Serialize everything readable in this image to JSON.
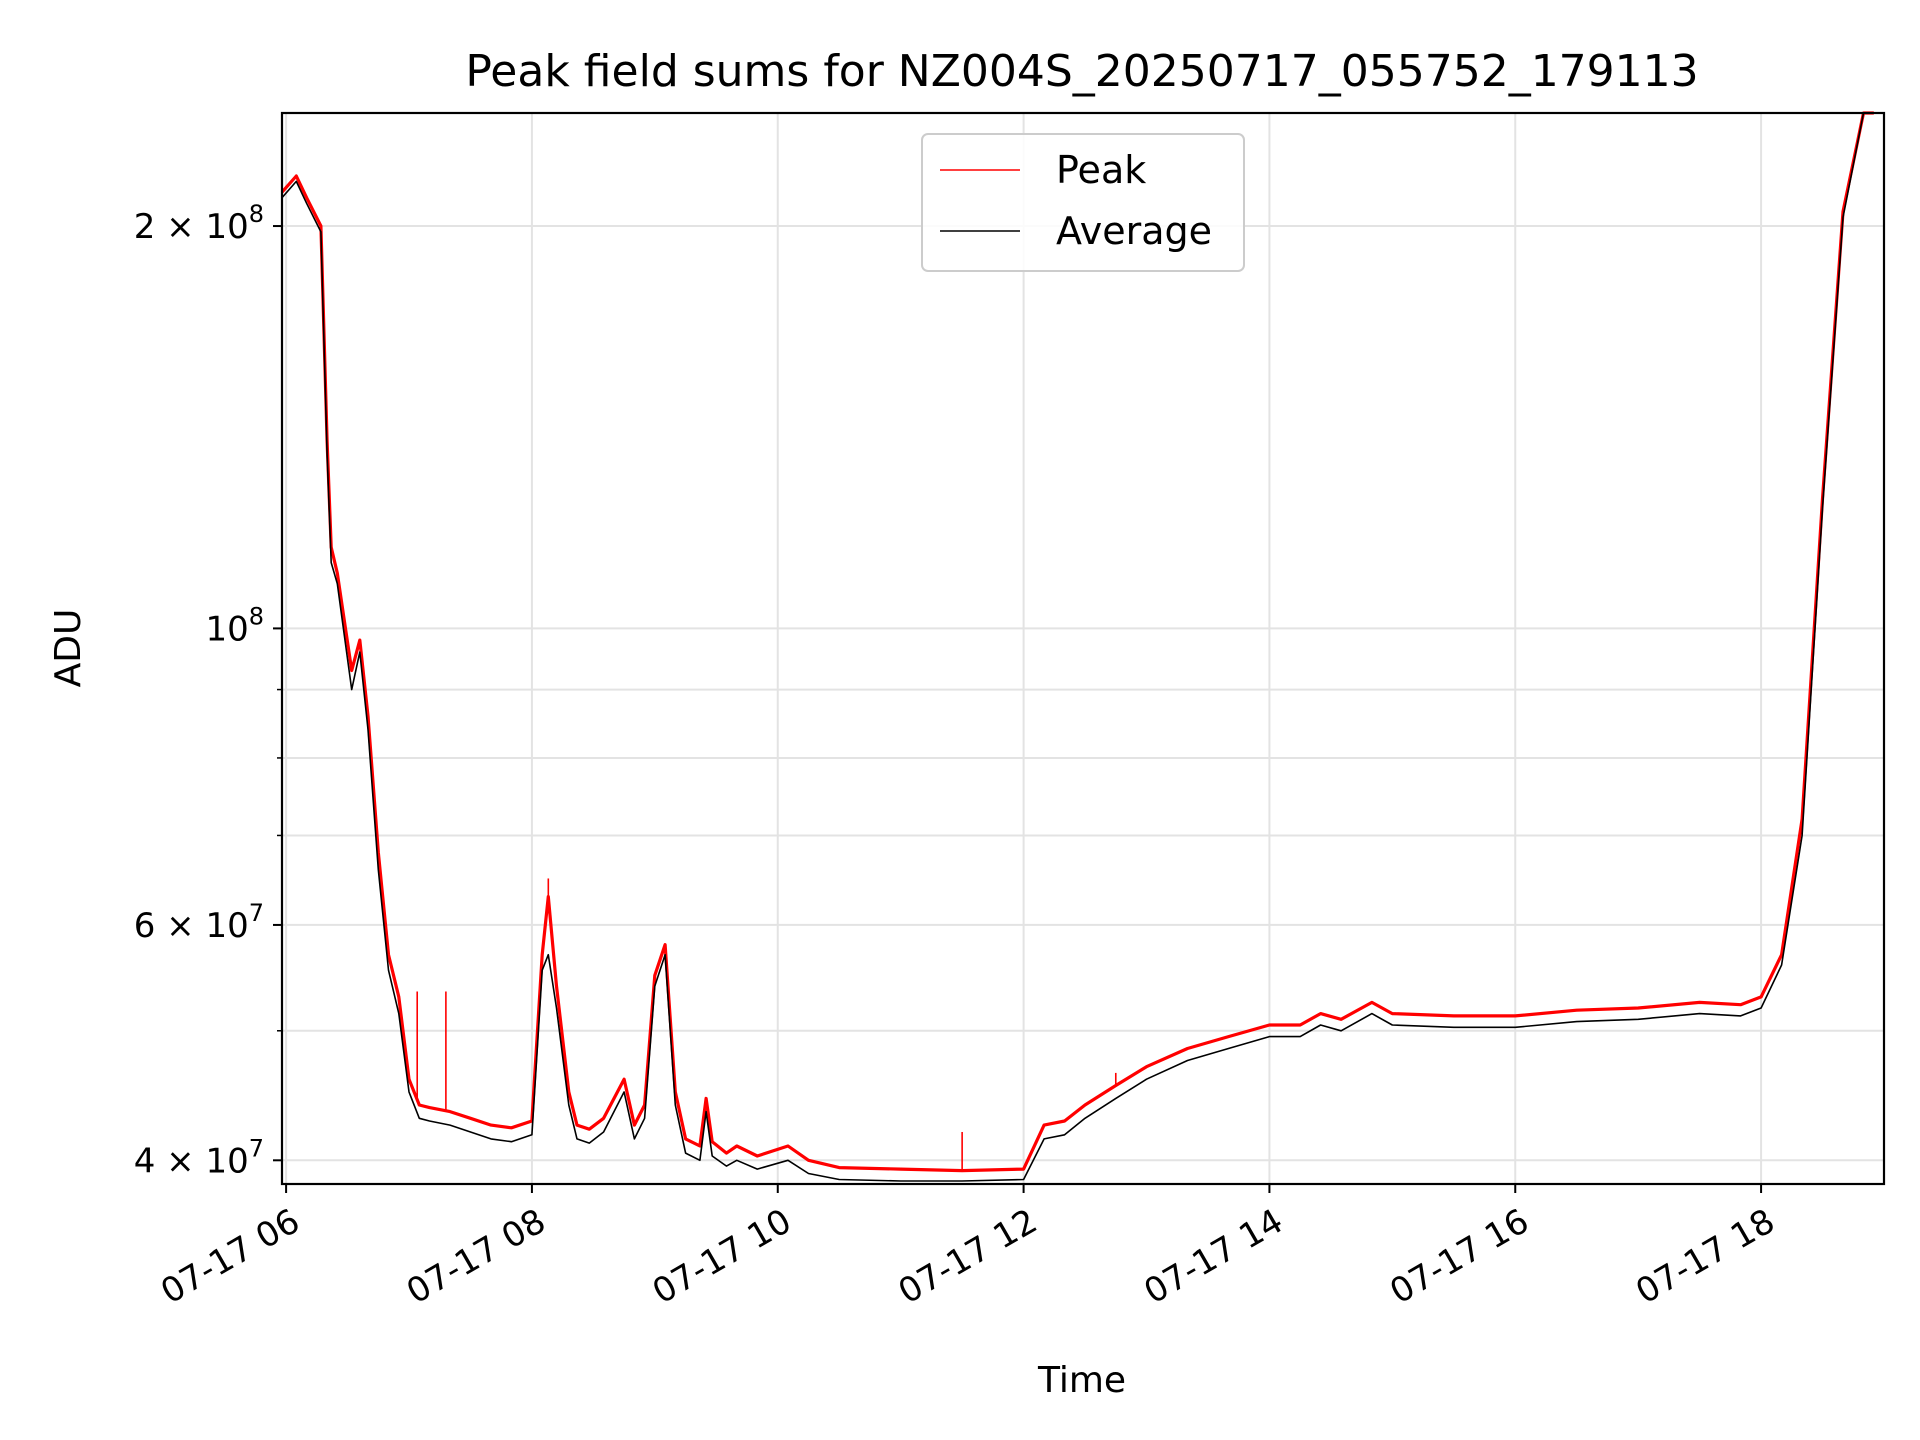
{
  "chart_data": {
    "type": "line",
    "title": "Peak field sums for NZ004S_20250717_055752_179113",
    "xlabel": "Time",
    "ylabel": "ADU",
    "x_scale": "time",
    "y_scale": "log",
    "xlim": [
      "2025-07-17 05:58",
      "2025-07-17 19:00"
    ],
    "ylim": [
      38400000,
      243000000
    ],
    "grid": true,
    "legend_position": "top-center",
    "x_ticks": [
      {
        "value": "2025-07-17 06:00",
        "label": "07-17 06"
      },
      {
        "value": "2025-07-17 08:00",
        "label": "07-17 08"
      },
      {
        "value": "2025-07-17 10:00",
        "label": "07-17 10"
      },
      {
        "value": "2025-07-17 12:00",
        "label": "07-17 12"
      },
      {
        "value": "2025-07-17 14:00",
        "label": "07-17 14"
      },
      {
        "value": "2025-07-17 16:00",
        "label": "07-17 16"
      },
      {
        "value": "2025-07-17 18:00",
        "label": "07-17 18"
      }
    ],
    "y_major_ticks": [
      {
        "value": 40000000,
        "mantissa": "4 × 10",
        "exp": "7"
      },
      {
        "value": 60000000,
        "mantissa": "6 × 10",
        "exp": "7"
      },
      {
        "value": 100000000,
        "mantissa": "10",
        "exp": "8"
      },
      {
        "value": 200000000,
        "mantissa": "2 × 10",
        "exp": "8"
      }
    ],
    "y_minor_ticks": [
      50000000,
      70000000,
      80000000,
      90000000
    ],
    "series": [
      {
        "name": "Peak",
        "color": "#ff0000",
        "x": [
          "2025-07-17 05:58",
          "2025-07-17 06:05",
          "2025-07-17 06:10",
          "2025-07-17 06:17",
          "2025-07-17 06:20",
          "2025-07-17 06:22",
          "2025-07-17 06:25",
          "2025-07-17 06:32",
          "2025-07-17 06:36",
          "2025-07-17 06:40",
          "2025-07-17 06:45",
          "2025-07-17 06:50",
          "2025-07-17 06:55",
          "2025-07-17 07:00",
          "2025-07-17 07:05",
          "2025-07-17 07:10",
          "2025-07-17 07:20",
          "2025-07-17 07:30",
          "2025-07-17 07:40",
          "2025-07-17 07:50",
          "2025-07-17 08:00",
          "2025-07-17 08:05",
          "2025-07-17 08:08",
          "2025-07-17 08:12",
          "2025-07-17 08:18",
          "2025-07-17 08:22",
          "2025-07-17 08:28",
          "2025-07-17 08:35",
          "2025-07-17 08:45",
          "2025-07-17 08:50",
          "2025-07-17 08:55",
          "2025-07-17 09:00",
          "2025-07-17 09:05",
          "2025-07-17 09:10",
          "2025-07-17 09:15",
          "2025-07-17 09:22",
          "2025-07-17 09:25",
          "2025-07-17 09:28",
          "2025-07-17 09:35",
          "2025-07-17 09:40",
          "2025-07-17 09:50",
          "2025-07-17 10:05",
          "2025-07-17 10:15",
          "2025-07-17 10:30",
          "2025-07-17 11:00",
          "2025-07-17 11:30",
          "2025-07-17 12:00",
          "2025-07-17 12:10",
          "2025-07-17 12:20",
          "2025-07-17 12:30",
          "2025-07-17 12:45",
          "2025-07-17 13:00",
          "2025-07-17 13:20",
          "2025-07-17 13:40",
          "2025-07-17 14:00",
          "2025-07-17 14:15",
          "2025-07-17 14:25",
          "2025-07-17 14:35",
          "2025-07-17 14:50",
          "2025-07-17 15:00",
          "2025-07-17 15:30",
          "2025-07-17 16:00",
          "2025-07-17 16:30",
          "2025-07-17 17:00",
          "2025-07-17 17:30",
          "2025-07-17 17:50",
          "2025-07-17 18:00",
          "2025-07-17 18:10",
          "2025-07-17 18:20",
          "2025-07-17 18:30",
          "2025-07-17 18:40",
          "2025-07-17 18:50",
          "2025-07-17 18:55"
        ],
        "y": [
          212000000,
          218000000,
          210000000,
          200000000,
          138000000,
          115000000,
          110000000,
          93000000,
          98000000,
          86000000,
          68000000,
          57000000,
          53000000,
          46000000,
          44000000,
          43800000,
          43500000,
          43000000,
          42500000,
          42300000,
          42800000,
          57000000,
          63000000,
          54000000,
          45000000,
          42500000,
          42200000,
          43000000,
          46000000,
          42500000,
          44000000,
          55000000,
          58000000,
          45000000,
          41500000,
          41000000,
          44500000,
          41300000,
          40500000,
          41000000,
          40300000,
          41000000,
          40000000,
          39500000,
          39400000,
          39300000,
          39400000,
          42500000,
          42800000,
          44000000,
          45500000,
          47000000,
          48500000,
          49500000,
          50500000,
          50500000,
          51500000,
          51000000,
          52500000,
          51500000,
          51300000,
          51300000,
          51800000,
          52000000,
          52500000,
          52300000,
          53000000,
          57000000,
          72000000,
          125000000,
          205000000,
          243000000,
          243000000
        ]
      },
      {
        "name": "Average",
        "color": "#000000",
        "x": [
          "2025-07-17 05:58",
          "2025-07-17 06:05",
          "2025-07-17 06:10",
          "2025-07-17 06:17",
          "2025-07-17 06:20",
          "2025-07-17 06:22",
          "2025-07-17 06:25",
          "2025-07-17 06:32",
          "2025-07-17 06:36",
          "2025-07-17 06:40",
          "2025-07-17 06:45",
          "2025-07-17 06:50",
          "2025-07-17 06:55",
          "2025-07-17 07:00",
          "2025-07-17 07:05",
          "2025-07-17 07:10",
          "2025-07-17 07:20",
          "2025-07-17 07:30",
          "2025-07-17 07:40",
          "2025-07-17 07:50",
          "2025-07-17 08:00",
          "2025-07-17 08:05",
          "2025-07-17 08:08",
          "2025-07-17 08:12",
          "2025-07-17 08:18",
          "2025-07-17 08:22",
          "2025-07-17 08:28",
          "2025-07-17 08:35",
          "2025-07-17 08:45",
          "2025-07-17 08:50",
          "2025-07-17 08:55",
          "2025-07-17 09:00",
          "2025-07-17 09:05",
          "2025-07-17 09:10",
          "2025-07-17 09:15",
          "2025-07-17 09:22",
          "2025-07-17 09:25",
          "2025-07-17 09:28",
          "2025-07-17 09:35",
          "2025-07-17 09:40",
          "2025-07-17 09:50",
          "2025-07-17 10:05",
          "2025-07-17 10:15",
          "2025-07-17 10:30",
          "2025-07-17 11:00",
          "2025-07-17 11:30",
          "2025-07-17 12:00",
          "2025-07-17 12:10",
          "2025-07-17 12:20",
          "2025-07-17 12:30",
          "2025-07-17 12:45",
          "2025-07-17 13:00",
          "2025-07-17 13:20",
          "2025-07-17 13:40",
          "2025-07-17 14:00",
          "2025-07-17 14:15",
          "2025-07-17 14:25",
          "2025-07-17 14:35",
          "2025-07-17 14:50",
          "2025-07-17 15:00",
          "2025-07-17 15:30",
          "2025-07-17 16:00",
          "2025-07-17 16:30",
          "2025-07-17 17:00",
          "2025-07-17 17:30",
          "2025-07-17 17:50",
          "2025-07-17 18:00",
          "2025-07-17 18:10",
          "2025-07-17 18:20",
          "2025-07-17 18:30",
          "2025-07-17 18:40",
          "2025-07-17 18:50",
          "2025-07-17 18:55"
        ],
        "y": [
          210000000,
          216000000,
          208000000,
          198000000,
          135000000,
          112000000,
          108000000,
          90000000,
          96000000,
          84000000,
          66000000,
          55500000,
          51500000,
          45000000,
          43000000,
          42800000,
          42500000,
          42000000,
          41500000,
          41300000,
          41800000,
          55500000,
          57000000,
          52000000,
          44000000,
          41500000,
          41200000,
          42000000,
          45000000,
          41500000,
          43000000,
          54000000,
          57000000,
          44000000,
          40500000,
          40000000,
          43500000,
          40300000,
          39600000,
          40000000,
          39400000,
          40000000,
          39100000,
          38700000,
          38600000,
          38600000,
          38700000,
          41500000,
          41800000,
          43000000,
          44500000,
          46000000,
          47500000,
          48500000,
          49500000,
          49500000,
          50500000,
          50000000,
          51500000,
          50500000,
          50300000,
          50300000,
          50800000,
          51000000,
          51500000,
          51300000,
          52000000,
          56000000,
          70000000,
          123000000,
          203000000,
          243000000,
          243000000
        ]
      }
    ],
    "spikes": {
      "series": "Peak",
      "x": [
        "2025-07-17 07:04",
        "2025-07-17 07:18",
        "2025-07-17 08:08",
        "2025-07-17 11:30",
        "2025-07-17 12:45"
      ],
      "y": [
        53500000,
        53500000,
        65000000,
        42000000,
        46500000
      ]
    }
  }
}
